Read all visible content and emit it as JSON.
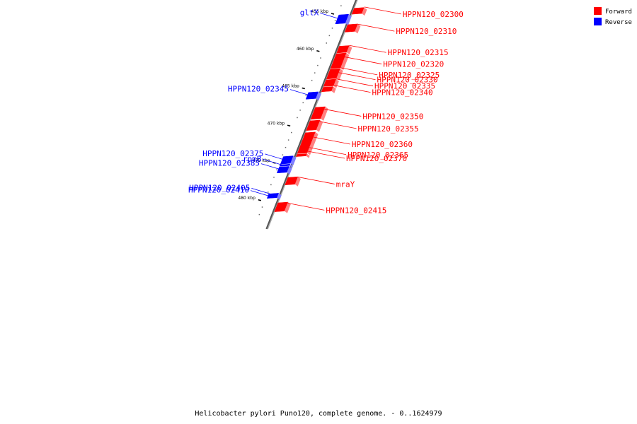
{
  "caption": "Helicobacter pylori Puno120, complete genome. - 0..1624979",
  "legend": {
    "forward_label": "Forward",
    "reverse_label": "Reverse",
    "forward_color": "#ff0000",
    "reverse_color": "#0000ff"
  },
  "axis_ticks": [
    {
      "label": "455 kbp",
      "pos": 455000
    },
    {
      "label": "460 kbp",
      "pos": 460000
    },
    {
      "label": "465 kbp",
      "pos": 465000
    },
    {
      "label": "470 kbp",
      "pos": 470000
    },
    {
      "label": "475 kbp",
      "pos": 475000
    },
    {
      "label": "480 kbp",
      "pos": 480000
    }
  ],
  "genes": [
    {
      "name": "HPPN120_02300",
      "strand": "forward",
      "start": 454400,
      "end": 455200
    },
    {
      "name": "gltX",
      "strand": "reverse",
      "start": 455300,
      "end": 456500
    },
    {
      "name": "HPPN120_02310",
      "strand": "forward",
      "start": 456600,
      "end": 457600
    },
    {
      "name": "HPPN120_02315",
      "strand": "forward",
      "start": 459500,
      "end": 460400
    },
    {
      "name": "HPPN120_02320",
      "strand": "forward",
      "start": 460500,
      "end": 462500
    },
    {
      "name": "HPPN120_02325",
      "strand": "forward",
      "start": 462600,
      "end": 463300
    },
    {
      "name": "HPPN120_02330",
      "strand": "forward",
      "start": 463300,
      "end": 463900
    },
    {
      "name": "HPPN120_02335",
      "strand": "forward",
      "start": 464000,
      "end": 464900
    },
    {
      "name": "HPPN120_02340",
      "strand": "forward",
      "start": 465000,
      "end": 465600
    },
    {
      "name": "HPPN120_02345",
      "strand": "reverse",
      "start": 465700,
      "end": 466600
    },
    {
      "name": "HPPN120_02350",
      "strand": "forward",
      "start": 467700,
      "end": 469300
    },
    {
      "name": "HPPN120_02355",
      "strand": "forward",
      "start": 469500,
      "end": 470800
    },
    {
      "name": "HPPN120_02360",
      "strand": "forward",
      "start": 471100,
      "end": 473400
    },
    {
      "name": "HPPN120_02365",
      "strand": "forward",
      "start": 473400,
      "end": 473900
    },
    {
      "name": "HPPN120_02370",
      "strand": "forward",
      "start": 474000,
      "end": 474300
    },
    {
      "name": "HPPN120_02375",
      "strand": "reverse",
      "start": 474300,
      "end": 475300
    },
    {
      "name": "rpmB",
      "strand": "reverse",
      "start": 475400,
      "end": 475600
    },
    {
      "name": "HPPN120_02385",
      "strand": "reverse",
      "start": 475700,
      "end": 476500
    },
    {
      "name": "mraY",
      "strand": "forward",
      "start": 477100,
      "end": 478100
    },
    {
      "name": "HPPN120_02405",
      "strand": "reverse",
      "start": 479300,
      "end": 479500
    },
    {
      "name": "HPPN120_02410",
      "strand": "reverse",
      "start": 479500,
      "end": 479900
    },
    {
      "name": "HPPN120_02415",
      "strand": "forward",
      "start": 480500,
      "end": 481700
    }
  ]
}
